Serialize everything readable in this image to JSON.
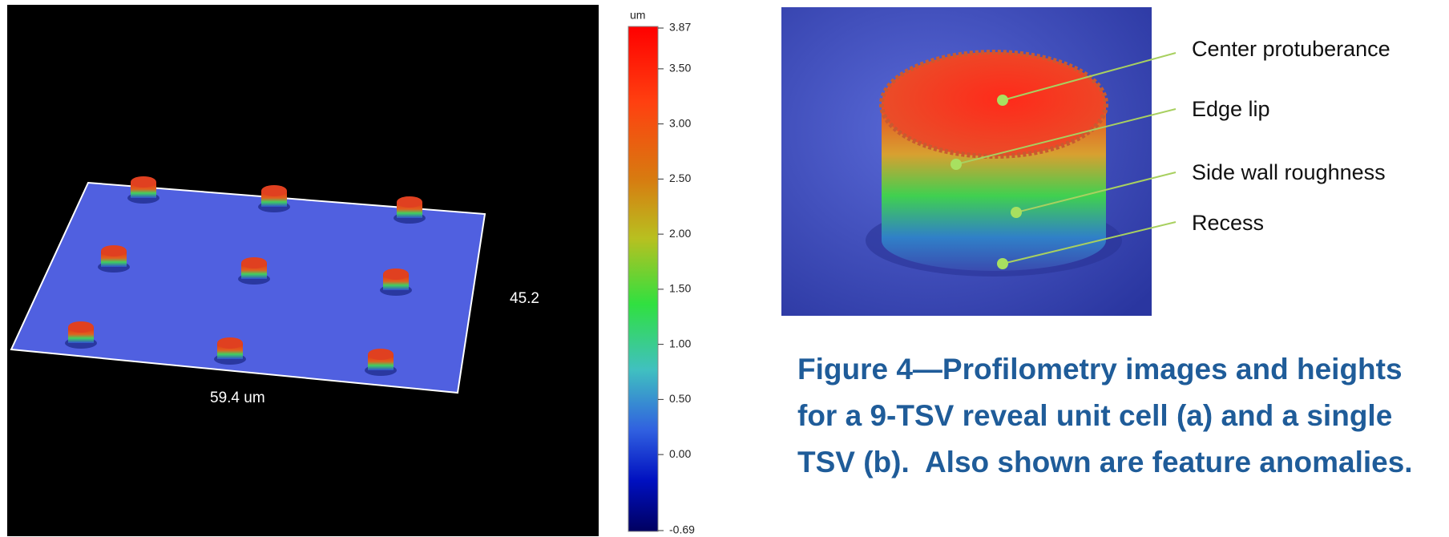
{
  "panel_a": {
    "colorbar": {
      "unit": "um",
      "ticks": [
        3.87,
        {
          "value": 3.5,
          "label": "3.50"
        },
        {
          "value": 3,
          "label": "3.00"
        },
        {
          "value": 2.5,
          "label": "2.50"
        },
        {
          "value": 2,
          "label": "2.00"
        },
        {
          "value": 1.5,
          "label": "1.50"
        },
        {
          "value": 1,
          "label": "1.00"
        },
        {
          "value": 0.5,
          "label": "0.50"
        },
        {
          "value": 0,
          "label": "0.00"
        },
        -0.69
      ]
    },
    "x_dimension": "59.4 um",
    "y_dimension": "45.2"
  },
  "panel_b": {
    "annotations": [
      "Center protuberance",
      "Edge lip",
      "Side wall roughness",
      "Recess"
    ]
  },
  "caption": "Figure 4—Profilometry images and heights for a 9-TSV reveal unit cell (a) and a single TSV (b).  Also shown are feature anomalies."
}
